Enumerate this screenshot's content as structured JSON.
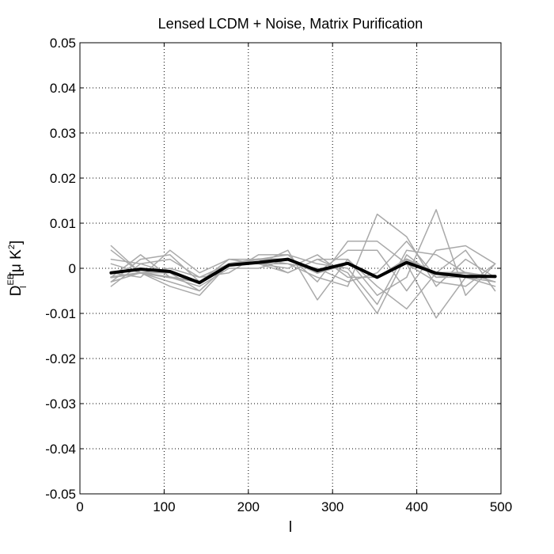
{
  "chart_data": {
    "type": "line",
    "title": "Lensed LCDM + Noise, Matrix Purification",
    "xlabel": "l",
    "ylabel": {
      "base": "D",
      "subscript": "l",
      "superscript": "EB",
      "bracket_open": "[μ K",
      "unit_power": "2",
      "bracket_close": "]"
    },
    "xlim": [
      0,
      500
    ],
    "ylim": [
      -0.05,
      0.05
    ],
    "xticks": [
      0,
      100,
      200,
      300,
      400,
      500
    ],
    "xtick_labels": [
      "0",
      "100",
      "200",
      "300",
      "400",
      "500"
    ],
    "yticks": [
      -0.05,
      -0.04,
      -0.03,
      -0.02,
      -0.01,
      0,
      0.01,
      0.02,
      0.03,
      0.04,
      0.05
    ],
    "ytick_labels": [
      "-0.05",
      "-0.04",
      "-0.03",
      "-0.02",
      "-0.01",
      "0",
      "0.01",
      "0.02",
      "0.03",
      "0.04",
      "0.05"
    ],
    "grid": true,
    "x": [
      37,
      72,
      107,
      142,
      177,
      212,
      247,
      282,
      318,
      353,
      388,
      423,
      458,
      493
    ],
    "series": [
      {
        "color": "#a9a9a9",
        "width": 1.5,
        "values": [
          0.002,
          0.001,
          -0.001,
          -0.005,
          0.001,
          0.002,
          0.003,
          0.001,
          0.0,
          -0.008,
          0.004,
          0.003,
          -0.001,
          -0.003
        ]
      },
      {
        "color": "#a9a9a9",
        "width": 1.5,
        "values": [
          -0.003,
          0.002,
          0.003,
          -0.003,
          0.002,
          0.002,
          0.001,
          -0.002,
          -0.004,
          0.012,
          0.007,
          -0.004,
          0.002,
          -0.002
        ]
      },
      {
        "color": "#a9a9a9",
        "width": 1.5,
        "values": [
          0.005,
          -0.001,
          -0.003,
          -0.005,
          0.001,
          0.001,
          0.004,
          -0.007,
          0.002,
          -0.006,
          -0.002,
          0.013,
          -0.006,
          0.001
        ]
      },
      {
        "color": "#a9a9a9",
        "width": 1.5,
        "values": [
          -0.001,
          -0.002,
          0.004,
          -0.001,
          0.002,
          0.001,
          0.0,
          0.003,
          -0.002,
          -0.002,
          0.001,
          -0.011,
          -0.002,
          -0.004
        ]
      },
      {
        "color": "#a9a9a9",
        "width": 1.5,
        "values": [
          -0.003,
          -0.001,
          -0.004,
          -0.006,
          0.001,
          0.001,
          -0.001,
          0.002,
          0.002,
          -0.004,
          -0.009,
          -0.001,
          0.004,
          -0.005
        ]
      },
      {
        "color": "#a9a9a9",
        "width": 1.5,
        "values": [
          -0.004,
          0.001,
          0.002,
          -0.002,
          -0.001,
          0.003,
          0.003,
          -0.003,
          0.006,
          0.006,
          0.001,
          -0.003,
          -0.004,
          0.001
        ]
      },
      {
        "color": "#a9a9a9",
        "width": 1.5,
        "values": [
          0.004,
          -0.001,
          -0.001,
          -0.003,
          0.001,
          0.002,
          -0.001,
          0.002,
          -0.001,
          -0.01,
          0.003,
          -0.002,
          -0.001,
          -0.002
        ]
      },
      {
        "color": "#a9a9a9",
        "width": 1.5,
        "values": [
          -0.002,
          0.003,
          -0.002,
          -0.004,
          0.0,
          0.0,
          0.002,
          -0.001,
          0.004,
          0.004,
          -0.005,
          0.004,
          0.005,
          0.001
        ]
      },
      {
        "color": "#a9a9a9",
        "width": 1.5,
        "values": [
          0.001,
          -0.001,
          0.0,
          -0.002,
          0.001,
          0.001,
          0.001,
          0.0,
          -0.003,
          -0.001,
          0.006,
          -0.002,
          -0.002,
          -0.003
        ]
      },
      {
        "color": "#a9a9a9",
        "width": 2.5,
        "values": [
          -0.002,
          -0.001,
          -0.002,
          -0.003,
          0.001,
          0.002,
          0.002,
          -0.001,
          0.001,
          -0.002,
          0.002,
          -0.001,
          -0.001,
          -0.002
        ]
      },
      {
        "color": "#000000",
        "width": 4,
        "values": [
          -0.001,
          -0.0002,
          -0.0007,
          -0.0032,
          0.0007,
          0.0013,
          0.002,
          -0.0005,
          0.0011,
          -0.002,
          0.0013,
          -0.0011,
          -0.0018,
          -0.0018
        ]
      }
    ]
  }
}
